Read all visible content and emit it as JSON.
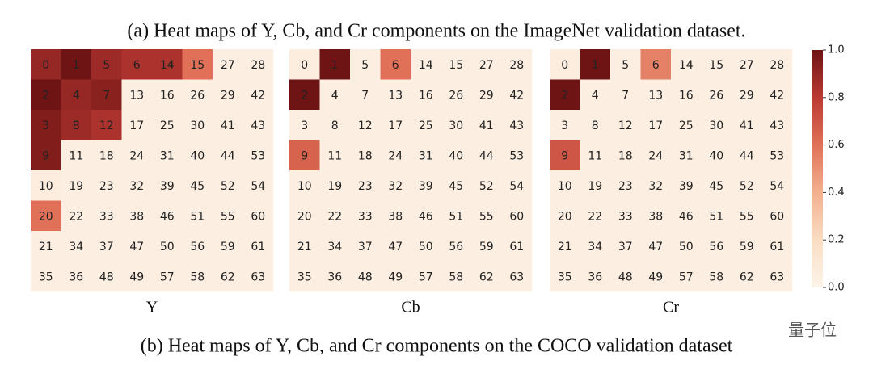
{
  "header": "(a) Heat maps of Y, Cb, and Cr components on the ImageNet validation dataset.",
  "caption": "(b) Heat maps of Y, Cb, and Cr components on the COCO validation dataset",
  "watermark": "量子位",
  "colorbar": {
    "lim": [
      0,
      1
    ],
    "colors": [
      "#fdf4ea",
      "#f9ddc3",
      "#f3b08f",
      "#e07158",
      "#bb3a33",
      "#6e1414"
    ],
    "ticks": [
      {
        "value": 0,
        "label": "0.0"
      },
      {
        "value": 0.2,
        "label": "0.2"
      },
      {
        "value": 0.4,
        "label": "0.4"
      },
      {
        "value": 0.6,
        "label": "0.6"
      },
      {
        "value": 0.8,
        "label": "0.8"
      },
      {
        "value": 1,
        "label": "1.0"
      }
    ]
  },
  "chart_data": [
    {
      "type": "heatmap",
      "title": "Y",
      "labels": [
        [
          0,
          1,
          5,
          6,
          14,
          15,
          27,
          28
        ],
        [
          2,
          4,
          7,
          13,
          16,
          26,
          29,
          42
        ],
        [
          3,
          8,
          12,
          17,
          25,
          30,
          41,
          43
        ],
        [
          9,
          11,
          18,
          24,
          31,
          40,
          44,
          53
        ],
        [
          10,
          19,
          23,
          32,
          39,
          45,
          52,
          54
        ],
        [
          20,
          22,
          33,
          38,
          46,
          51,
          55,
          60
        ],
        [
          21,
          34,
          37,
          47,
          50,
          56,
          59,
          61
        ],
        [
          35,
          36,
          48,
          49,
          57,
          58,
          62,
          63
        ]
      ],
      "values": [
        [
          0.9,
          1.0,
          0.88,
          0.84,
          0.84,
          0.6,
          0.04,
          0.04
        ],
        [
          1.0,
          0.9,
          0.93,
          0.04,
          0.04,
          0.04,
          0.04,
          0.04
        ],
        [
          0.95,
          0.88,
          0.84,
          0.04,
          0.04,
          0.04,
          0.04,
          0.04
        ],
        [
          0.95,
          0.04,
          0.04,
          0.04,
          0.04,
          0.04,
          0.04,
          0.04
        ],
        [
          0.06,
          0.04,
          0.04,
          0.04,
          0.04,
          0.04,
          0.04,
          0.04
        ],
        [
          0.6,
          0.04,
          0.04,
          0.04,
          0.04,
          0.04,
          0.04,
          0.04
        ],
        [
          0.04,
          0.04,
          0.04,
          0.04,
          0.04,
          0.04,
          0.04,
          0.04
        ],
        [
          0.04,
          0.04,
          0.04,
          0.04,
          0.04,
          0.04,
          0.04,
          0.04
        ]
      ]
    },
    {
      "type": "heatmap",
      "title": "Cb",
      "labels": [
        [
          0,
          1,
          5,
          6,
          14,
          15,
          27,
          28
        ],
        [
          2,
          4,
          7,
          13,
          16,
          26,
          29,
          42
        ],
        [
          3,
          8,
          12,
          17,
          25,
          30,
          41,
          43
        ],
        [
          9,
          11,
          18,
          24,
          31,
          40,
          44,
          53
        ],
        [
          10,
          19,
          23,
          32,
          39,
          45,
          52,
          54
        ],
        [
          20,
          22,
          33,
          38,
          46,
          51,
          55,
          60
        ],
        [
          21,
          34,
          37,
          47,
          50,
          56,
          59,
          61
        ],
        [
          35,
          36,
          48,
          49,
          57,
          58,
          62,
          63
        ]
      ],
      "values": [
        [
          0.06,
          1.0,
          0.04,
          0.6,
          0.04,
          0.04,
          0.04,
          0.04
        ],
        [
          1.0,
          0.04,
          0.04,
          0.04,
          0.04,
          0.04,
          0.04,
          0.04
        ],
        [
          0.04,
          0.04,
          0.04,
          0.04,
          0.04,
          0.04,
          0.04,
          0.04
        ],
        [
          0.65,
          0.04,
          0.04,
          0.04,
          0.04,
          0.04,
          0.04,
          0.04
        ],
        [
          0.04,
          0.04,
          0.04,
          0.04,
          0.04,
          0.04,
          0.04,
          0.04
        ],
        [
          0.04,
          0.04,
          0.04,
          0.04,
          0.04,
          0.04,
          0.04,
          0.04
        ],
        [
          0.04,
          0.04,
          0.04,
          0.04,
          0.04,
          0.04,
          0.04,
          0.04
        ],
        [
          0.04,
          0.04,
          0.04,
          0.04,
          0.04,
          0.04,
          0.04,
          0.04
        ]
      ]
    },
    {
      "type": "heatmap",
      "title": "Cr",
      "labels": [
        [
          0,
          1,
          5,
          6,
          14,
          15,
          27,
          28
        ],
        [
          2,
          4,
          7,
          13,
          16,
          26,
          29,
          42
        ],
        [
          3,
          8,
          12,
          17,
          25,
          30,
          41,
          43
        ],
        [
          9,
          11,
          18,
          24,
          31,
          40,
          44,
          53
        ],
        [
          10,
          19,
          23,
          32,
          39,
          45,
          52,
          54
        ],
        [
          20,
          22,
          33,
          38,
          46,
          51,
          55,
          60
        ],
        [
          21,
          34,
          37,
          47,
          50,
          56,
          59,
          61
        ],
        [
          35,
          36,
          48,
          49,
          57,
          58,
          62,
          63
        ]
      ],
      "values": [
        [
          0.06,
          1.0,
          0.04,
          0.55,
          0.04,
          0.04,
          0.04,
          0.04
        ],
        [
          1.0,
          0.04,
          0.04,
          0.04,
          0.04,
          0.04,
          0.04,
          0.04
        ],
        [
          0.04,
          0.04,
          0.04,
          0.04,
          0.04,
          0.04,
          0.04,
          0.04
        ],
        [
          0.7,
          0.04,
          0.04,
          0.04,
          0.04,
          0.04,
          0.04,
          0.04
        ],
        [
          0.04,
          0.04,
          0.04,
          0.04,
          0.04,
          0.04,
          0.04,
          0.04
        ],
        [
          0.04,
          0.04,
          0.04,
          0.04,
          0.04,
          0.04,
          0.04,
          0.04
        ],
        [
          0.04,
          0.04,
          0.04,
          0.04,
          0.04,
          0.04,
          0.04,
          0.04
        ],
        [
          0.04,
          0.04,
          0.04,
          0.04,
          0.04,
          0.04,
          0.04,
          0.04
        ]
      ]
    }
  ]
}
